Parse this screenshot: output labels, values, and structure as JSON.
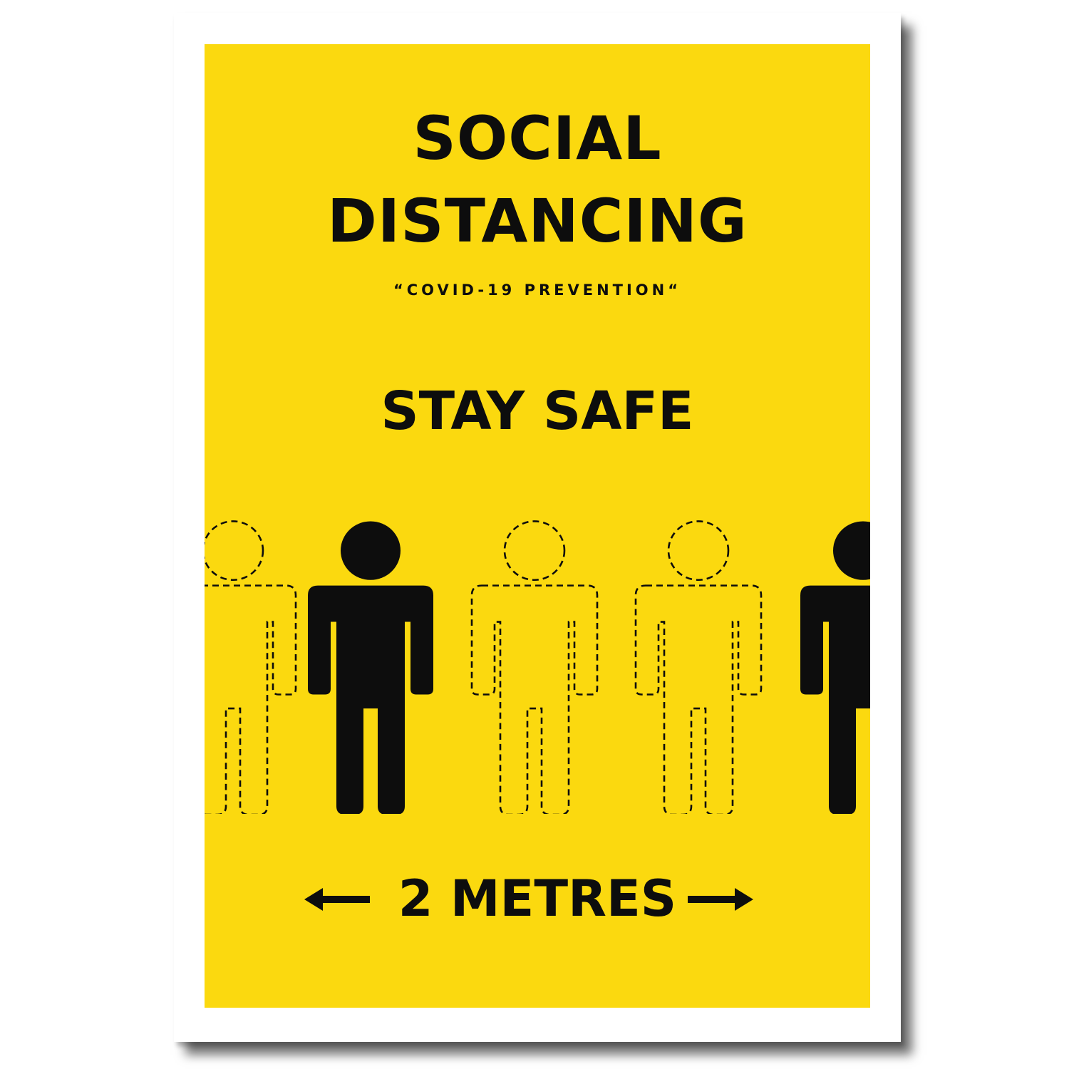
{
  "poster": {
    "title_line1": "SOCIAL",
    "title_line2": "DISTANCING",
    "subtitle": "“COVID-19 PREVENTION“",
    "headline": "STAY SAFE",
    "distance_label": "2 METRES"
  },
  "figures": [
    {
      "kind": "outline"
    },
    {
      "kind": "solid"
    },
    {
      "kind": "outline"
    },
    {
      "kind": "outline"
    },
    {
      "kind": "solid"
    }
  ],
  "icons": {
    "left_arrow": "arrow-left-icon",
    "right_arrow": "arrow-right-icon",
    "person": "person-icon"
  },
  "colors": {
    "background": "#fbd90f",
    "ink": "#0d0d0d",
    "border": "#ffffff"
  }
}
